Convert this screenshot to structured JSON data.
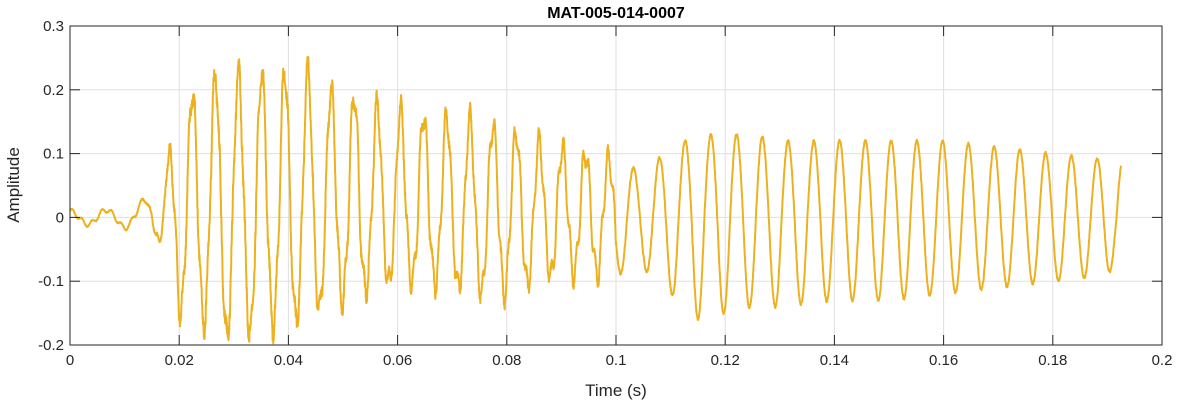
{
  "chart_data": {
    "type": "line",
    "title": "MAT-005-014-0007",
    "xlabel": "Time (s)",
    "ylabel": "Amplitude",
    "xlim": [
      0,
      0.2
    ],
    "ylim": [
      -0.2,
      0.3
    ],
    "xticks": [
      0,
      0.02,
      0.04,
      0.06,
      0.08,
      0.1,
      0.12,
      0.14,
      0.16,
      0.18,
      0.2
    ],
    "xtick_labels": [
      "0",
      "0.02",
      "0.04",
      "0.06",
      "0.08",
      "0.1",
      "0.12",
      "0.14",
      "0.16",
      "0.18",
      "0.2"
    ],
    "yticks": [
      -0.2,
      -0.1,
      0,
      0.1,
      0.2,
      0.3
    ],
    "ytick_labels": [
      "-0.2",
      "-0.1",
      "0",
      "0.1",
      "0.2",
      "0.3"
    ],
    "grid": true,
    "line_color": "#EDB120",
    "x_end": 0.1925,
    "envelope": [
      {
        "x": 0.0,
        "max": 0.01,
        "min": -0.01
      },
      {
        "x": 0.008,
        "max": 0.012,
        "min": -0.012
      },
      {
        "x": 0.012,
        "max": 0.015,
        "min": -0.02
      },
      {
        "x": 0.016,
        "max": 0.05,
        "min": -0.03
      },
      {
        "x": 0.018,
        "max": 0.09,
        "min": -0.09
      },
      {
        "x": 0.02,
        "max": 0.14,
        "min": -0.15
      },
      {
        "x": 0.023,
        "max": 0.21,
        "min": -0.15
      },
      {
        "x": 0.026,
        "max": 0.22,
        "min": -0.18
      },
      {
        "x": 0.03,
        "max": 0.23,
        "min": -0.19
      },
      {
        "x": 0.033,
        "max": 0.22,
        "min": -0.18
      },
      {
        "x": 0.036,
        "max": 0.23,
        "min": -0.17
      },
      {
        "x": 0.04,
        "max": 0.23,
        "min": -0.17
      },
      {
        "x": 0.044,
        "max": 0.23,
        "min": -0.15
      },
      {
        "x": 0.047,
        "max": 0.2,
        "min": -0.14
      },
      {
        "x": 0.05,
        "max": 0.2,
        "min": -0.13
      },
      {
        "x": 0.055,
        "max": 0.18,
        "min": -0.11
      },
      {
        "x": 0.06,
        "max": 0.17,
        "min": -0.1
      },
      {
        "x": 0.065,
        "max": 0.16,
        "min": -0.1
      },
      {
        "x": 0.07,
        "max": 0.16,
        "min": -0.11
      },
      {
        "x": 0.075,
        "max": 0.15,
        "min": -0.12
      },
      {
        "x": 0.08,
        "max": 0.14,
        "min": -0.12
      },
      {
        "x": 0.085,
        "max": 0.12,
        "min": -0.1
      },
      {
        "x": 0.09,
        "max": 0.11,
        "min": -0.09
      },
      {
        "x": 0.095,
        "max": 0.1,
        "min": -0.09
      },
      {
        "x": 0.1,
        "max": 0.09,
        "min": -0.09
      },
      {
        "x": 0.105,
        "max": 0.07,
        "min": -0.08
      },
      {
        "x": 0.11,
        "max": 0.11,
        "min": -0.12
      },
      {
        "x": 0.115,
        "max": 0.13,
        "min": -0.16
      },
      {
        "x": 0.12,
        "max": 0.13,
        "min": -0.15
      },
      {
        "x": 0.125,
        "max": 0.13,
        "min": -0.14
      },
      {
        "x": 0.13,
        "max": 0.12,
        "min": -0.14
      },
      {
        "x": 0.14,
        "max": 0.12,
        "min": -0.13
      },
      {
        "x": 0.15,
        "max": 0.12,
        "min": -0.13
      },
      {
        "x": 0.16,
        "max": 0.12,
        "min": -0.12
      },
      {
        "x": 0.17,
        "max": 0.11,
        "min": -0.11
      },
      {
        "x": 0.18,
        "max": 0.1,
        "min": -0.1
      },
      {
        "x": 0.19,
        "max": 0.09,
        "min": -0.09
      },
      {
        "x": 0.1925,
        "max": 0.09,
        "min": -0.06
      }
    ]
  }
}
